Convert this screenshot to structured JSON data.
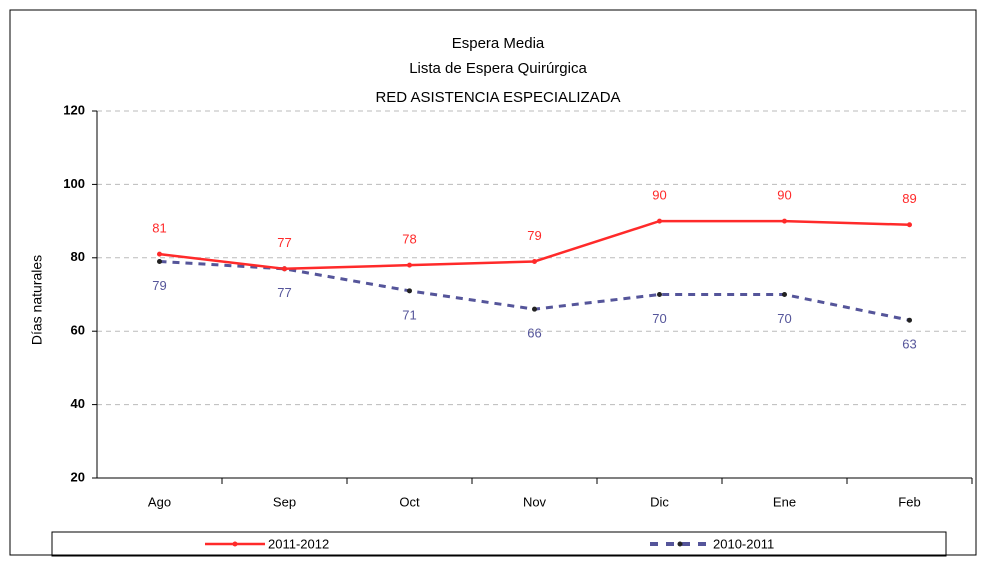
{
  "chart_data": {
    "type": "line",
    "title": [
      "Espera Media",
      "Lista de Espera Quirúrgica",
      "RED ASISTENCIA ESPECIALIZADA"
    ],
    "y_label": "Días naturales",
    "categories": [
      "Ago",
      "Sep",
      "Oct",
      "Nov",
      "Dic",
      "Ene",
      "Feb"
    ],
    "series": [
      {
        "name": "2011-2012",
        "color": "#ff2a2a",
        "dash": false,
        "label_side": "above",
        "values": [
          81,
          77,
          78,
          79,
          90,
          90,
          89
        ]
      },
      {
        "name": "2010-2011",
        "color": "#55559a",
        "dash": true,
        "label_side": "below",
        "values": [
          79,
          77,
          71,
          66,
          70,
          70,
          63
        ]
      }
    ],
    "ylim": [
      20,
      120
    ],
    "yticks": [
      20,
      40,
      60,
      80,
      100,
      120
    ],
    "grid": true,
    "legend": "bottom"
  }
}
